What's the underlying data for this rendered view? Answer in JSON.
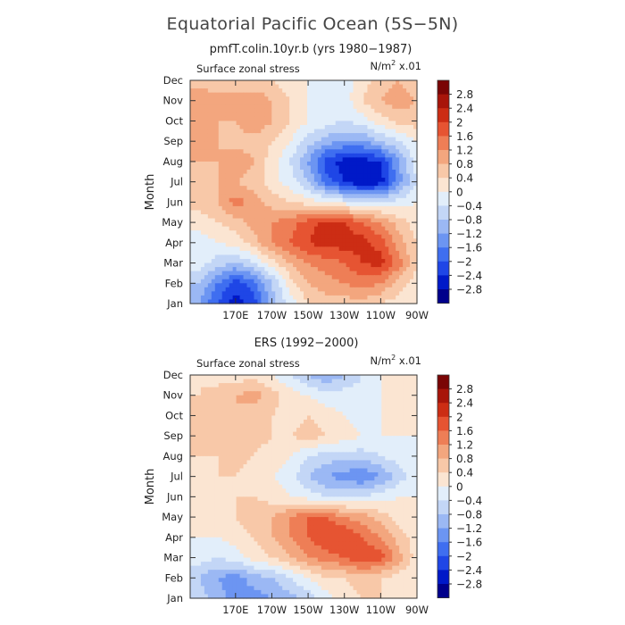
{
  "figure": {
    "title": "Equatorial Pacific Ocean (5S−5N)",
    "units_label": "N/m² x.01"
  },
  "chart_data": [
    {
      "type": "heatmap",
      "title": "pmfT.colin.10yr.b (yrs 1980−1987)",
      "field_label": "Surface zonal stress",
      "units": "N/m² x.01",
      "xlabel": "",
      "ylabel": "Month",
      "x_ticks": [
        "170E",
        "170W",
        "150W",
        "130W",
        "110W",
        "90W"
      ],
      "y_ticks": [
        "Jan",
        "Feb",
        "Mar",
        "Apr",
        "May",
        "Jun",
        "Jul",
        "Aug",
        "Sep",
        "Oct",
        "Nov",
        "Dec"
      ],
      "colorbar_levels": [
        "2.8",
        "2.4",
        "2",
        "1.6",
        "1.2",
        "0.8",
        "0.4",
        "0",
        "−0.4",
        "−0.8",
        "−1.2",
        "−1.6",
        "−2",
        "−2.4",
        "−2.8"
      ],
      "x_lon": [
        150,
        160,
        170,
        180,
        190,
        200,
        210,
        220,
        230,
        240,
        250,
        260,
        270
      ],
      "values": [
        [
          -1.2,
          -2.0,
          -2.6,
          -2.2,
          -1.0,
          -0.2,
          0.4,
          0.6,
          0.6,
          0.6,
          0.4,
          0.2,
          0.0
        ],
        [
          -0.8,
          -1.6,
          -2.2,
          -1.8,
          -0.8,
          0.2,
          0.8,
          1.0,
          1.2,
          1.4,
          1.2,
          0.6,
          0.2
        ],
        [
          -0.2,
          -0.6,
          -0.8,
          -0.4,
          0.2,
          0.8,
          1.2,
          1.4,
          1.6,
          2.0,
          2.2,
          1.4,
          0.4
        ],
        [
          -0.2,
          0.0,
          0.2,
          0.6,
          1.2,
          1.6,
          2.0,
          2.2,
          2.2,
          2.2,
          1.8,
          1.0,
          0.4
        ],
        [
          0.2,
          0.4,
          0.6,
          1.0,
          1.2,
          1.4,
          1.8,
          2.2,
          2.0,
          1.6,
          1.2,
          0.6,
          0.2
        ],
        [
          0.6,
          0.8,
          1.4,
          1.0,
          0.6,
          0.4,
          0.2,
          0.0,
          -0.2,
          -0.4,
          -0.4,
          -0.2,
          0.0
        ],
        [
          0.6,
          0.8,
          0.8,
          0.6,
          0.2,
          -0.2,
          -0.8,
          -1.8,
          -2.4,
          -2.8,
          -2.6,
          -1.4,
          -0.4
        ],
        [
          0.8,
          0.8,
          1.2,
          0.8,
          0.2,
          -0.4,
          -1.2,
          -2.2,
          -2.6,
          -2.6,
          -2.4,
          -1.2,
          -0.2
        ],
        [
          1.0,
          0.8,
          0.6,
          0.6,
          0.4,
          0.0,
          -0.6,
          -1.0,
          -1.2,
          -1.2,
          -0.8,
          -0.4,
          0.0
        ],
        [
          1.0,
          0.8,
          0.8,
          1.2,
          0.8,
          0.4,
          0.0,
          -0.2,
          -0.4,
          -0.2,
          0.2,
          0.6,
          0.6
        ],
        [
          1.2,
          1.0,
          1.0,
          1.2,
          0.8,
          0.4,
          0.0,
          -0.2,
          -0.2,
          0.4,
          0.8,
          1.0,
          0.8
        ],
        [
          0.6,
          0.4,
          0.4,
          0.4,
          0.4,
          0.2,
          0.0,
          -0.2,
          -0.2,
          0.2,
          0.6,
          0.8,
          0.6
        ]
      ]
    },
    {
      "type": "heatmap",
      "title": "ERS (1992−2000)",
      "field_label": "Surface zonal stress",
      "units": "N/m² x.01",
      "xlabel": "",
      "ylabel": "Month",
      "x_ticks": [
        "170E",
        "170W",
        "150W",
        "130W",
        "110W",
        "90W"
      ],
      "y_ticks": [
        "Jan",
        "Feb",
        "Mar",
        "Apr",
        "May",
        "Jun",
        "Jul",
        "Aug",
        "Sep",
        "Oct",
        "Nov",
        "Dec"
      ],
      "colorbar_levels": [
        "2.8",
        "2.4",
        "2",
        "1.6",
        "1.2",
        "0.8",
        "0.4",
        "0",
        "−0.4",
        "−0.8",
        "−1.2",
        "−1.6",
        "−2",
        "−2.4",
        "−2.8"
      ],
      "x_lon": [
        150,
        160,
        170,
        180,
        190,
        200,
        210,
        220,
        230,
        240,
        250,
        260,
        270
      ],
      "values": [
        [
          -0.6,
          -1.0,
          -1.4,
          -1.4,
          -1.2,
          -1.0,
          -0.6,
          -0.2,
          0.2,
          0.4,
          0.4,
          0.2,
          0.0
        ],
        [
          -0.8,
          -1.2,
          -1.4,
          -1.0,
          -0.8,
          -0.4,
          0.0,
          0.4,
          0.4,
          0.6,
          0.4,
          0.2,
          0.0
        ],
        [
          -0.2,
          -0.4,
          -0.2,
          0.2,
          0.4,
          0.8,
          1.2,
          1.4,
          1.6,
          2.0,
          1.8,
          1.0,
          0.2
        ],
        [
          0.0,
          0.0,
          0.2,
          0.4,
          0.8,
          1.2,
          1.6,
          2.0,
          2.0,
          1.6,
          1.2,
          0.6,
          0.2
        ],
        [
          0.2,
          0.2,
          0.4,
          0.6,
          0.8,
          1.2,
          1.6,
          1.6,
          1.2,
          1.0,
          0.6,
          0.2,
          0.0
        ],
        [
          0.2,
          0.4,
          0.4,
          0.4,
          0.2,
          0.0,
          -0.2,
          -0.4,
          -0.4,
          -0.4,
          -0.2,
          0.0,
          0.0
        ],
        [
          0.4,
          0.4,
          0.4,
          0.2,
          0.0,
          -0.2,
          -0.8,
          -1.2,
          -1.4,
          -1.6,
          -1.2,
          -0.6,
          -0.2
        ],
        [
          0.4,
          0.4,
          0.6,
          0.4,
          0.2,
          0.0,
          -0.4,
          -0.6,
          -0.6,
          -0.6,
          -0.4,
          -0.2,
          0.0
        ],
        [
          0.6,
          0.6,
          0.6,
          0.6,
          0.4,
          0.4,
          0.6,
          0.4,
          0.2,
          0.0,
          0.0,
          0.0,
          0.0
        ],
        [
          0.6,
          0.6,
          0.8,
          0.6,
          0.4,
          0.2,
          0.4,
          0.2,
          0.0,
          -0.2,
          0.0,
          0.2,
          0.2
        ],
        [
          0.4,
          0.6,
          0.8,
          1.0,
          0.6,
          0.2,
          0.0,
          -0.2,
          -0.2,
          -0.2,
          0.0,
          0.2,
          0.2
        ],
        [
          0.4,
          0.2,
          0.2,
          0.2,
          0.0,
          -0.4,
          -0.8,
          -1.2,
          -0.8,
          -0.4,
          0.0,
          0.2,
          0.2
        ]
      ]
    }
  ]
}
